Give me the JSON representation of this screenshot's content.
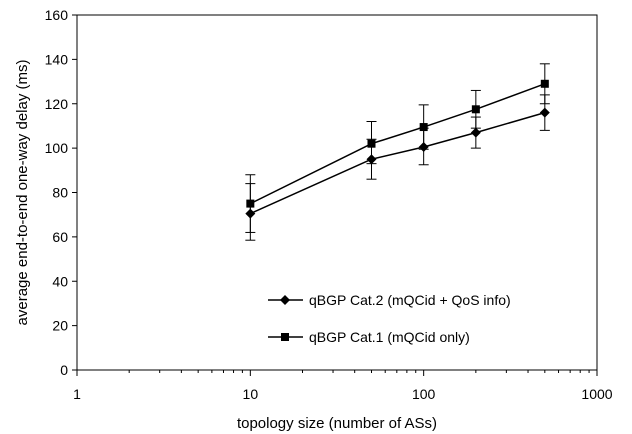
{
  "chart_data": {
    "type": "line",
    "title": "",
    "xlabel": "topology size (number of ASs)",
    "ylabel": "average end-to-end one-way delay (ms)",
    "x_scale": "log",
    "xlim": [
      1,
      1000
    ],
    "ylim": [
      0,
      160
    ],
    "x_ticks": [
      1,
      10,
      100,
      1000
    ],
    "y_ticks": [
      0,
      20,
      40,
      60,
      80,
      100,
      120,
      140,
      160
    ],
    "x_tick_labels": [
      "1",
      "10",
      "100",
      "1000"
    ],
    "y_tick_labels": [
      "0",
      "20",
      "40",
      "60",
      "80",
      "100",
      "120",
      "140",
      "160"
    ],
    "grid": false,
    "legend_position": "bottom-center",
    "x": [
      10,
      50,
      100,
      200,
      500
    ],
    "series": [
      {
        "name": "qBGP Cat.2 (mQCid + QoS info)",
        "marker": "diamond",
        "color": "#000000",
        "values": [
          70.5,
          95,
          100.5,
          107,
          116
        ],
        "error_low": [
          58.5,
          86,
          92.5,
          100,
          108
        ],
        "error_high": [
          84,
          104,
          109,
          114,
          124
        ]
      },
      {
        "name": "qBGP Cat.1 (mQCid only)",
        "marker": "square",
        "color": "#000000",
        "values": [
          75,
          102,
          109.5,
          117.5,
          129
        ],
        "error_low": [
          62,
          93,
          99.5,
          109,
          120
        ],
        "error_high": [
          88,
          112,
          119.5,
          126,
          138
        ]
      }
    ]
  }
}
